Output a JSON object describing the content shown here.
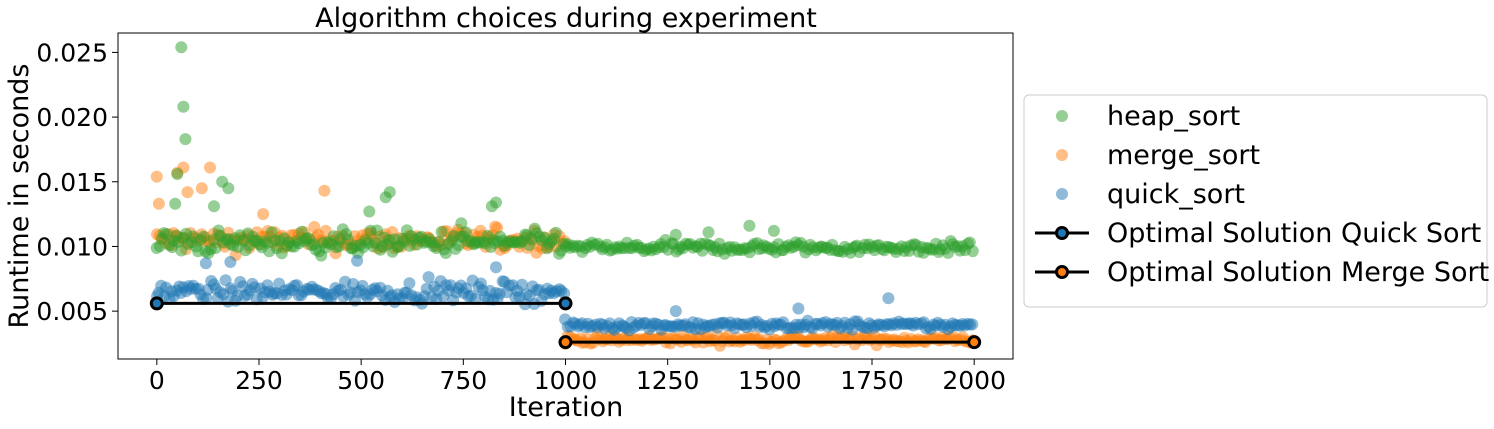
{
  "chart_data": {
    "type": "scatter",
    "title": "Algorithm choices during experiment",
    "xlabel": "Iteration",
    "ylabel": "Runtime in seconds",
    "xlim": [
      -95,
      2095
    ],
    "ylim": [
      0.0013,
      0.0265
    ],
    "xticks": [
      0,
      250,
      500,
      750,
      1000,
      1250,
      1500,
      1750,
      2000
    ],
    "xtick_labels": [
      "0",
      "250",
      "500",
      "750",
      "1000",
      "1250",
      "1500",
      "1750",
      "2000"
    ],
    "yticks": [
      0.005,
      0.01,
      0.015,
      0.02,
      0.025
    ],
    "ytick_labels": [
      "0.005",
      "0.010",
      "0.015",
      "0.020",
      "0.025"
    ],
    "grid": false,
    "legend_position": "outside-right",
    "legend": [
      {
        "label": "heap_sort",
        "kind": "marker",
        "color": "#2ca02c"
      },
      {
        "label": "merge_sort",
        "kind": "marker",
        "color": "#ff7f0e"
      },
      {
        "label": "quick_sort",
        "kind": "marker",
        "color": "#1f77b4"
      },
      {
        "label": "Optimal Solution Quick Sort",
        "kind": "line",
        "color": "#000000",
        "marker_color": "#1f77b4"
      },
      {
        "label": "Optimal Solution Merge Sort",
        "kind": "line",
        "color": "#000000",
        "marker_color": "#ff7f0e"
      }
    ],
    "series": [
      {
        "name": "heap_sort",
        "color": "#2ca02c",
        "segments": [
          {
            "x_start": 0,
            "x_end": 1000,
            "center": 0.0103,
            "spread": 0.0008
          },
          {
            "x_start": 1000,
            "x_end": 2000,
            "center": 0.0099,
            "spread": 0.0004
          }
        ],
        "outliers": [
          {
            "x": 60,
            "y": 0.0254
          },
          {
            "x": 65,
            "y": 0.0208
          },
          {
            "x": 70,
            "y": 0.0183
          },
          {
            "x": 50,
            "y": 0.0156
          },
          {
            "x": 160,
            "y": 0.015
          },
          {
            "x": 175,
            "y": 0.0145
          },
          {
            "x": 45,
            "y": 0.0133
          },
          {
            "x": 140,
            "y": 0.0131
          },
          {
            "x": 520,
            "y": 0.0127
          },
          {
            "x": 560,
            "y": 0.0138
          },
          {
            "x": 570,
            "y": 0.0142
          },
          {
            "x": 820,
            "y": 0.0131
          },
          {
            "x": 830,
            "y": 0.0134
          },
          {
            "x": 745,
            "y": 0.0118
          },
          {
            "x": 1270,
            "y": 0.0109
          },
          {
            "x": 1350,
            "y": 0.0111
          },
          {
            "x": 1450,
            "y": 0.0116
          },
          {
            "x": 1510,
            "y": 0.0112
          }
        ]
      },
      {
        "name": "merge_sort",
        "color": "#ff7f0e",
        "segments": [
          {
            "x_start": 0,
            "x_end": 1000,
            "center": 0.0105,
            "spread": 0.0008
          },
          {
            "x_start": 1000,
            "x_end": 2000,
            "center": 0.0028,
            "spread": 0.0003
          }
        ],
        "outliers": [
          {
            "x": 0,
            "y": 0.0154
          },
          {
            "x": 65,
            "y": 0.0161
          },
          {
            "x": 130,
            "y": 0.0161
          },
          {
            "x": 50,
            "y": 0.0157
          },
          {
            "x": 110,
            "y": 0.0145
          },
          {
            "x": 75,
            "y": 0.0142
          },
          {
            "x": 410,
            "y": 0.0143
          },
          {
            "x": 260,
            "y": 0.0125
          },
          {
            "x": 5,
            "y": 0.0133
          }
        ]
      },
      {
        "name": "quick_sort",
        "color": "#1f77b4",
        "segments": [
          {
            "x_start": 0,
            "x_end": 1000,
            "center": 0.0065,
            "spread": 0.0007
          },
          {
            "x_start": 1000,
            "x_end": 2000,
            "center": 0.0039,
            "spread": 0.0003
          }
        ],
        "outliers": [
          {
            "x": 120,
            "y": 0.0087
          },
          {
            "x": 180,
            "y": 0.0088
          },
          {
            "x": 490,
            "y": 0.0089
          },
          {
            "x": 830,
            "y": 0.0084
          },
          {
            "x": 1570,
            "y": 0.0052
          },
          {
            "x": 1790,
            "y": 0.006
          },
          {
            "x": 1270,
            "y": 0.005
          }
        ]
      }
    ],
    "lines": [
      {
        "name": "Optimal Solution Quick Sort",
        "x": [
          0,
          1000
        ],
        "y": [
          0.0056,
          0.0056
        ],
        "color": "#000000",
        "marker_color": "#1f77b4"
      },
      {
        "name": "Optimal Solution Merge Sort",
        "x": [
          1000,
          2000
        ],
        "y": [
          0.0026,
          0.0026
        ],
        "color": "#000000",
        "marker_color": "#ff7f0e"
      }
    ]
  }
}
